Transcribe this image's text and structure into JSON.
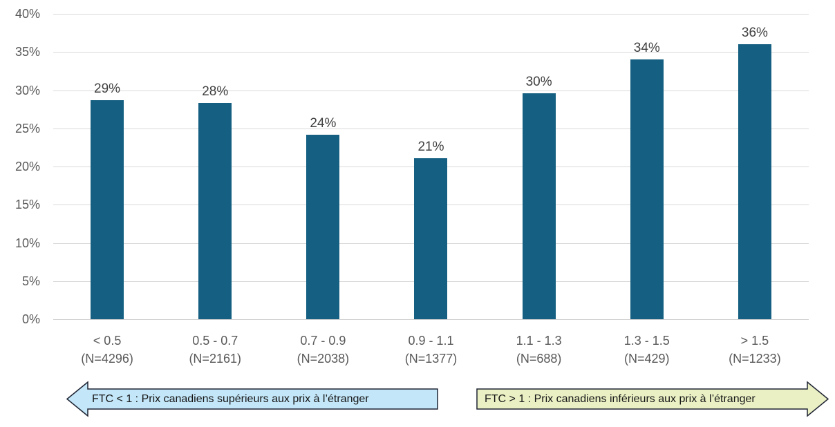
{
  "chart_data": {
    "type": "bar",
    "title": "",
    "xlabel": "",
    "ylabel": "",
    "categories": [
      "< 0.5",
      "0.5 - 0.7",
      "0.7 - 0.9",
      "0.9 - 1.1",
      "1.1 - 1.3",
      "1.3 - 1.5",
      "> 1.5"
    ],
    "sample_sizes": [
      "(N=4296)",
      "(N=2161)",
      "(N=2038)",
      "(N=1377)",
      "(N=688)",
      "(N=429)",
      "(N=1233)"
    ],
    "values": [
      28.7,
      28.3,
      24.2,
      21.1,
      29.6,
      34.0,
      36.0
    ],
    "value_labels": [
      "29%",
      "28%",
      "24%",
      "21%",
      "30%",
      "34%",
      "36%"
    ],
    "ylim": [
      0,
      40
    ],
    "y_ticks": [
      "40%",
      "35%",
      "30%",
      "25%",
      "20%",
      "15%",
      "10%",
      "5%",
      "0%"
    ],
    "grid": true,
    "legend": "none",
    "bar_color": "#156082"
  },
  "annotations": {
    "left_arrow": {
      "label": "FTC < 1 : Prix canadiens supérieurs aux prix à l’étranger",
      "direction": "left",
      "fill": "#C3E6F8",
      "border": "#1F2433"
    },
    "right_arrow": {
      "label": "FTC > 1 : Prix canadiens inférieurs aux prix à l’étranger",
      "direction": "right",
      "fill": "#EAF0C4",
      "border": "#1F2433"
    }
  },
  "colors": {
    "background": "#FFFFFF",
    "gridline": "#D9D9D9",
    "axis_label": "#595959",
    "data_label": "#404040"
  }
}
